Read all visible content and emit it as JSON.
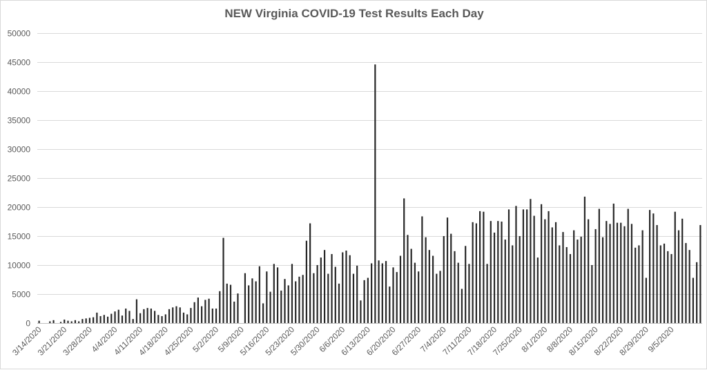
{
  "chart_data": {
    "type": "bar",
    "title": "NEW Virginia COVID-19 Test Results Each Day",
    "ylim": [
      0,
      50000
    ],
    "yticks": [
      0,
      5000,
      10000,
      15000,
      20000,
      25000,
      30000,
      35000,
      40000,
      45000,
      50000
    ],
    "x_tick_labels": [
      "3/14/2020",
      "3/21/2020",
      "3/28/2020",
      "4/4/2020",
      "4/11/2020",
      "4/18/2020",
      "4/25/2020",
      "5/2/2020",
      "5/9/2020",
      "5/16/2020",
      "5/23/2020",
      "5/30/2020",
      "6/6/2020",
      "6/13/2020",
      "6/20/2020",
      "6/27/2020",
      "7/4/2020",
      "7/11/2020",
      "7/18/2020",
      "7/25/2020",
      "8/1/2020",
      "8/8/2020",
      "8/15/2020",
      "8/22/2020",
      "8/29/2020",
      "9/5/2020"
    ],
    "grid": true,
    "bar_color": "#262626",
    "start_date": "3/14/2020",
    "values": [
      400,
      0,
      0,
      300,
      500,
      0,
      200,
      600,
      400,
      300,
      500,
      300,
      700,
      800,
      900,
      1000,
      1800,
      1200,
      1400,
      1100,
      1600,
      2000,
      2300,
      1300,
      2500,
      2100,
      700,
      4100,
      1700,
      2400,
      2600,
      2500,
      2100,
      1400,
      1200,
      1500,
      2400,
      2700,
      2900,
      2700,
      1800,
      1500,
      2600,
      3600,
      4400,
      2900,
      4000,
      4200,
      2500,
      2500,
      5500,
      14700,
      6800,
      6600,
      3700,
      5100,
      0,
      8600,
      6500,
      7700,
      7200,
      9800,
      3400,
      8900,
      5400,
      10200,
      9600,
      5600,
      7600,
      6500,
      10200,
      7200,
      8000,
      8300,
      14200,
      17200,
      8600,
      10000,
      11300,
      12600,
      8500,
      11900,
      9700,
      6800,
      12200,
      12500,
      11700,
      8500,
      9900,
      3900,
      7400,
      7800,
      10300,
      44600,
      10800,
      10300,
      10700,
      6300,
      9600,
      8800,
      11600,
      21500,
      15200,
      12800,
      10400,
      8900,
      18400,
      14800,
      12600,
      11600,
      8500,
      9000,
      15000,
      18200,
      15400,
      12400,
      10400,
      5900,
      13300,
      10200,
      17400,
      17200,
      19300,
      19200,
      10200,
      17600,
      15600,
      17600,
      17500,
      14400,
      19600,
      13400,
      20200,
      15000,
      19600,
      19600,
      21400,
      18500,
      11300,
      20500,
      17900,
      19300,
      16500,
      17400,
      13400,
      15700,
      13100,
      11900,
      16000,
      14400,
      14900,
      21800,
      17900,
      10000,
      16200,
      19700,
      14800,
      17600,
      17100,
      20600,
      17300,
      17300,
      16700,
      19700,
      17100,
      13000,
      13400,
      16000,
      7800,
      19500,
      18900,
      16900,
      13400,
      13700,
      12400,
      11900,
      19200,
      16000,
      18000,
      13800,
      12600,
      7800,
      10500,
      16900
    ]
  }
}
